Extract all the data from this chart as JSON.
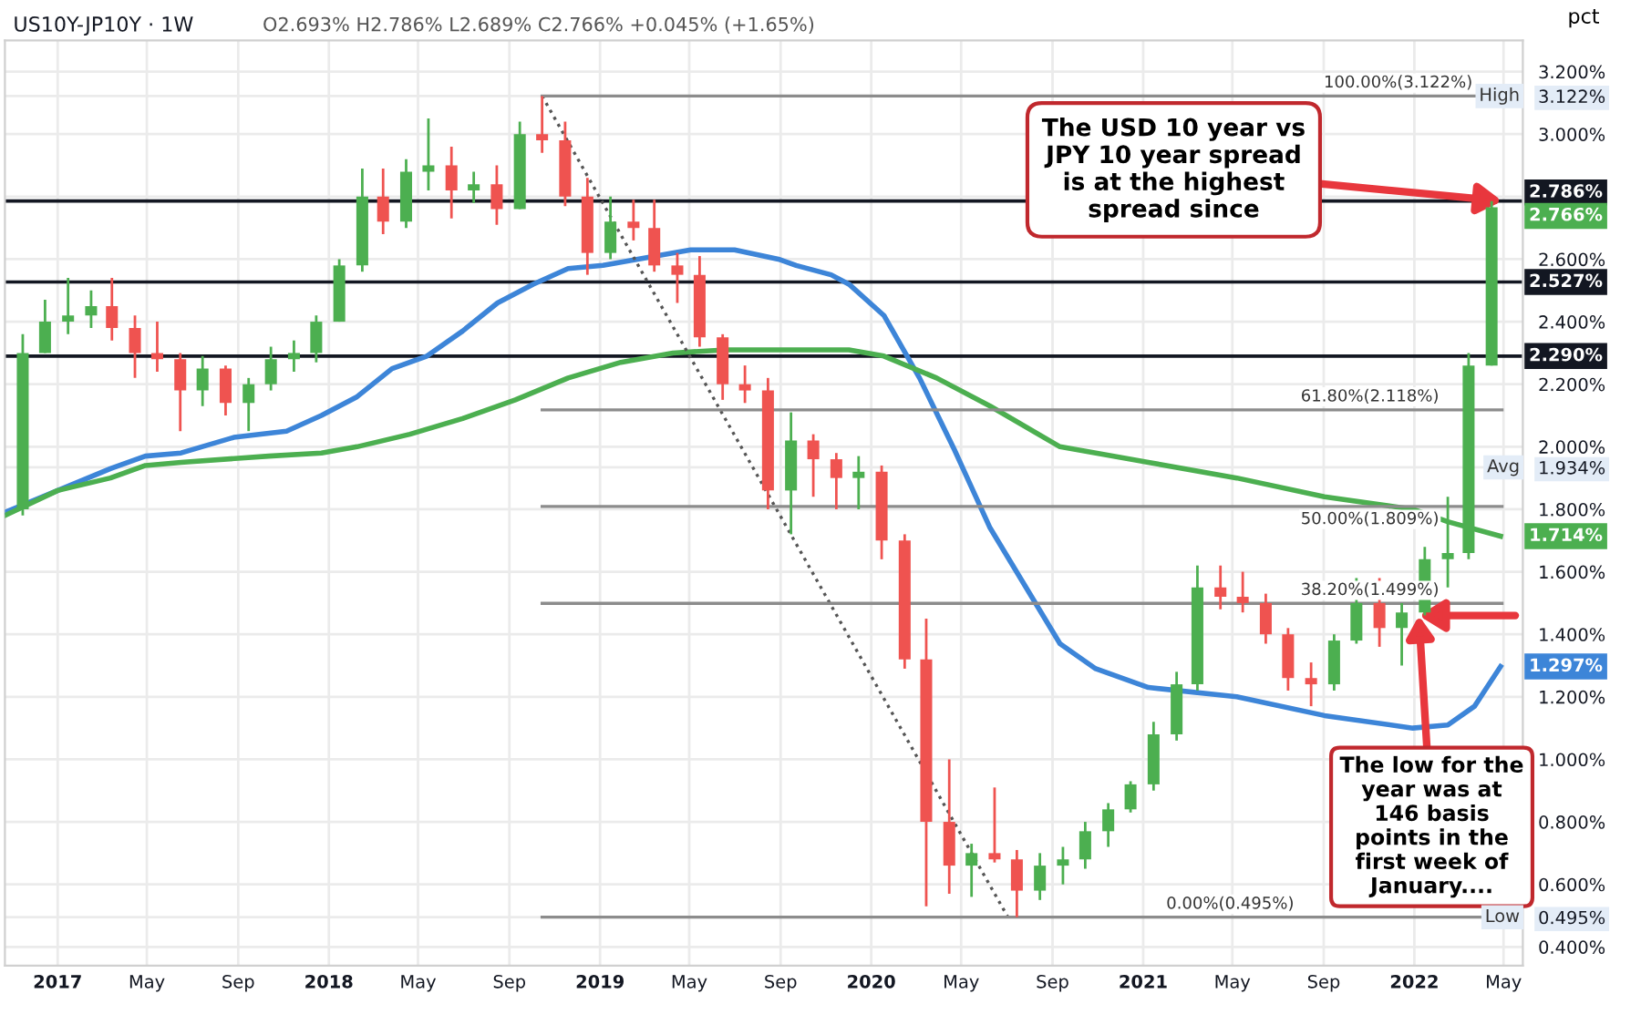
{
  "chart_data": {
    "type": "candlestick",
    "title": "US10Y-JP10Y · 1W",
    "subtitle": "O2.693% H2.786% L2.689% C2.766% +0.045% (+1.65%)",
    "ylabel": "pct",
    "series": [
      {
        "type": "candlestick",
        "x": [
          "2016-11-15",
          "2016-12-15",
          "2017-01-15",
          "2017-02-15",
          "2017-03-15",
          "2017-04-15",
          "2017-05-15",
          "2017-06-15",
          "2017-07-15",
          "2017-08-15",
          "2017-09-15",
          "2017-10-15",
          "2017-11-15",
          "2017-12-15",
          "2018-01-15",
          "2018-02-15",
          "2018-03-15",
          "2018-04-15",
          "2018-05-15",
          "2018-06-15",
          "2018-07-15",
          "2018-08-15",
          "2018-09-15",
          "2018-10-15",
          "2018-11-15",
          "2018-12-15",
          "2019-01-15",
          "2019-02-15",
          "2019-03-15",
          "2019-04-15",
          "2019-05-15",
          "2019-06-15",
          "2019-07-15",
          "2019-08-15",
          "2019-09-15",
          "2019-10-15",
          "2019-11-15",
          "2019-12-15",
          "2020-01-15",
          "2020-02-15",
          "2020-03-15",
          "2020-04-15",
          "2020-05-15",
          "2020-06-15",
          "2020-07-15",
          "2020-08-15",
          "2020-09-15",
          "2020-10-15",
          "2020-11-15",
          "2020-12-15",
          "2021-01-15",
          "2021-02-15",
          "2021-03-15",
          "2021-04-15",
          "2021-05-15",
          "2021-06-15",
          "2021-07-15",
          "2021-08-15",
          "2021-09-15",
          "2021-10-15",
          "2021-11-15",
          "2021-12-15",
          "2022-01-15",
          "2022-02-15",
          "2022-03-15",
          "2022-04-15"
        ],
        "ohlc": [
          [
            1.8,
            2.36,
            1.78,
            2.3
          ],
          [
            2.3,
            2.47,
            2.3,
            2.4
          ],
          [
            2.4,
            2.54,
            2.36,
            2.42
          ],
          [
            2.42,
            2.5,
            2.38,
            2.45
          ],
          [
            2.45,
            2.54,
            2.34,
            2.38
          ],
          [
            2.38,
            2.42,
            2.22,
            2.3
          ],
          [
            2.3,
            2.4,
            2.24,
            2.28
          ],
          [
            2.28,
            2.3,
            2.05,
            2.18
          ],
          [
            2.18,
            2.29,
            2.13,
            2.25
          ],
          [
            2.25,
            2.26,
            2.1,
            2.14
          ],
          [
            2.14,
            2.22,
            2.05,
            2.2
          ],
          [
            2.2,
            2.32,
            2.18,
            2.28
          ],
          [
            2.28,
            2.34,
            2.24,
            2.3
          ],
          [
            2.3,
            2.42,
            2.27,
            2.4
          ],
          [
            2.4,
            2.6,
            2.4,
            2.58
          ],
          [
            2.58,
            2.89,
            2.56,
            2.8
          ],
          [
            2.8,
            2.89,
            2.68,
            2.72
          ],
          [
            2.72,
            2.92,
            2.7,
            2.88
          ],
          [
            2.88,
            3.05,
            2.82,
            2.9
          ],
          [
            2.9,
            2.96,
            2.73,
            2.82
          ],
          [
            2.82,
            2.88,
            2.78,
            2.84
          ],
          [
            2.84,
            2.9,
            2.71,
            2.76
          ],
          [
            2.76,
            3.04,
            2.76,
            3.0
          ],
          [
            3.0,
            3.122,
            2.94,
            2.98
          ],
          [
            2.98,
            3.04,
            2.77,
            2.8
          ],
          [
            2.8,
            2.86,
            2.55,
            2.62
          ],
          [
            2.62,
            2.8,
            2.6,
            2.72
          ],
          [
            2.72,
            2.79,
            2.66,
            2.7
          ],
          [
            2.7,
            2.79,
            2.56,
            2.58
          ],
          [
            2.58,
            2.62,
            2.46,
            2.55
          ],
          [
            2.55,
            2.61,
            2.32,
            2.35
          ],
          [
            2.35,
            2.36,
            2.15,
            2.2
          ],
          [
            2.2,
            2.26,
            2.14,
            2.18
          ],
          [
            2.18,
            2.22,
            1.8,
            1.86
          ],
          [
            1.86,
            2.11,
            1.72,
            2.02
          ],
          [
            2.02,
            2.04,
            1.84,
            1.96
          ],
          [
            1.96,
            1.98,
            1.8,
            1.9
          ],
          [
            1.9,
            1.97,
            1.8,
            1.92
          ],
          [
            1.92,
            1.94,
            1.64,
            1.7
          ],
          [
            1.7,
            1.72,
            1.29,
            1.32
          ],
          [
            1.32,
            1.45,
            0.53,
            0.8
          ],
          [
            0.8,
            1.0,
            0.57,
            0.66
          ],
          [
            0.66,
            0.73,
            0.56,
            0.7
          ],
          [
            0.7,
            0.91,
            0.67,
            0.68
          ],
          [
            0.68,
            0.71,
            0.495,
            0.58
          ],
          [
            0.58,
            0.7,
            0.55,
            0.66
          ],
          [
            0.66,
            0.72,
            0.6,
            0.68
          ],
          [
            0.68,
            0.8,
            0.65,
            0.77
          ],
          [
            0.77,
            0.86,
            0.72,
            0.84
          ],
          [
            0.84,
            0.93,
            0.83,
            0.92
          ],
          [
            0.92,
            1.12,
            0.9,
            1.08
          ],
          [
            1.08,
            1.28,
            1.06,
            1.24
          ],
          [
            1.24,
            1.62,
            1.22,
            1.55
          ],
          [
            1.55,
            1.62,
            1.48,
            1.52
          ],
          [
            1.52,
            1.6,
            1.47,
            1.5
          ],
          [
            1.5,
            1.53,
            1.37,
            1.4
          ],
          [
            1.4,
            1.42,
            1.22,
            1.26
          ],
          [
            1.26,
            1.31,
            1.17,
            1.24
          ],
          [
            1.24,
            1.4,
            1.22,
            1.38
          ],
          [
            1.38,
            1.58,
            1.37,
            1.5
          ],
          [
            1.5,
            1.58,
            1.36,
            1.42
          ],
          [
            1.42,
            1.5,
            1.3,
            1.47
          ],
          [
            1.47,
            1.68,
            1.46,
            1.64
          ],
          [
            1.64,
            1.84,
            1.55,
            1.66
          ],
          [
            1.66,
            2.3,
            1.64,
            2.26
          ],
          [
            2.26,
            2.786,
            2.26,
            2.766
          ]
        ],
        "colors": [
          "#4caf50",
          "#4caf50",
          "#4caf50",
          "#4caf50",
          "#ef5350",
          "#ef5350",
          "#ef5350",
          "#ef5350",
          "#4caf50",
          "#ef5350",
          "#4caf50",
          "#4caf50",
          "#4caf50",
          "#4caf50",
          "#4caf50",
          "#4caf50",
          "#ef5350",
          "#4caf50",
          "#4caf50",
          "#ef5350",
          "#4caf50",
          "#ef5350",
          "#4caf50",
          "#ef5350",
          "#ef5350",
          "#ef5350",
          "#4caf50",
          "#ef5350",
          "#ef5350",
          "#ef5350",
          "#ef5350",
          "#ef5350",
          "#ef5350",
          "#ef5350",
          "#4caf50",
          "#ef5350",
          "#ef5350",
          "#4caf50",
          "#ef5350",
          "#ef5350",
          "#ef5350",
          "#ef5350",
          "#4caf50",
          "#ef5350",
          "#ef5350",
          "#4caf50",
          "#4caf50",
          "#4caf50",
          "#4caf50",
          "#4caf50",
          "#4caf50",
          "#4caf50",
          "#4caf50",
          "#ef5350",
          "#ef5350",
          "#ef5350",
          "#ef5350",
          "#ef5350",
          "#4caf50",
          "#4caf50",
          "#ef5350",
          "#4caf50",
          "#4caf50",
          "#4caf50",
          "#4caf50",
          "#4caf50"
        ]
      },
      {
        "type": "line",
        "color": "#3d85d8",
        "line_style": "solid",
        "x": [
          "2016-10-22",
          "2017-01-01",
          "2017-03-13",
          "2017-04-29",
          "2017-06-16",
          "2017-08-26",
          "2017-11-05",
          "2017-12-22",
          "2018-02-08",
          "2018-03-27",
          "2018-05-13",
          "2018-06-30",
          "2018-08-16",
          "2018-10-03",
          "2018-11-19",
          "2019-01-05",
          "2019-03-17",
          "2019-05-03",
          "2019-07-01",
          "2019-08-29",
          "2019-09-22",
          "2019-11-08",
          "2019-12-02",
          "2020-01-18",
          "2020-03-06",
          "2020-04-22",
          "2020-06-09",
          "2020-09-11",
          "2020-10-29",
          "2021-01-08",
          "2021-05-07",
          "2021-09-02",
          "2021-12-30",
          "2022-02-15",
          "2022-03-23",
          "2022-04-27"
        ],
        "values": [
          1.79,
          1.86,
          1.93,
          1.97,
          1.98,
          2.03,
          2.05,
          2.1,
          2.16,
          2.25,
          2.29,
          2.37,
          2.46,
          2.52,
          2.57,
          2.58,
          2.61,
          2.63,
          2.63,
          2.6,
          2.58,
          2.55,
          2.52,
          2.42,
          2.22,
          1.99,
          1.74,
          1.37,
          1.29,
          1.23,
          1.2,
          1.14,
          1.1,
          1.11,
          1.17,
          1.297
        ]
      },
      {
        "type": "line",
        "color": "#4caf50",
        "line_style": "solid",
        "x": [
          "2016-10-22",
          "2017-01-01",
          "2017-03-13",
          "2017-04-29",
          "2017-06-16",
          "2017-10-12",
          "2017-12-22",
          "2018-02-08",
          "2018-04-20",
          "2018-06-30",
          "2018-09-09",
          "2018-11-19",
          "2019-01-29",
          "2019-04-09",
          "2019-06-19",
          "2019-09-22",
          "2019-12-02",
          "2020-01-18",
          "2020-03-29",
          "2020-06-09",
          "2020-09-11",
          "2021-01-08",
          "2021-05-07",
          "2021-09-02",
          "2021-12-30",
          "2022-02-15",
          "2022-04-27"
        ],
        "values": [
          1.78,
          1.86,
          1.9,
          1.94,
          1.95,
          1.97,
          1.98,
          2.0,
          2.04,
          2.09,
          2.15,
          2.22,
          2.27,
          2.3,
          2.31,
          2.31,
          2.31,
          2.29,
          2.22,
          2.13,
          2.0,
          1.95,
          1.9,
          1.84,
          1.8,
          1.76,
          1.714
        ]
      },
      {
        "type": "line",
        "color": "#555555",
        "line_style": "dotted",
        "x": [
          "2018-10-15",
          "2020-07-03"
        ],
        "values": [
          3.122,
          0.495
        ]
      },
      {
        "type": "line",
        "color": "#8c8c8c",
        "line_style": "solid",
        "x": [
          "2018-10-15",
          "2022-04-29"
        ],
        "values": [
          3.122,
          3.122
        ]
      },
      {
        "type": "line",
        "color": "#8c8c8c",
        "line_style": "solid",
        "x": [
          "2018-10-15",
          "2022-04-29"
        ],
        "values": [
          2.118,
          2.118
        ]
      },
      {
        "type": "line",
        "color": "#8c8c8c",
        "line_style": "solid",
        "x": [
          "2018-10-15",
          "2022-04-29"
        ],
        "values": [
          1.809,
          1.809
        ]
      },
      {
        "type": "line",
        "color": "#8c8c8c",
        "line_style": "solid",
        "x": [
          "2018-10-15",
          "2022-04-29"
        ],
        "values": [
          1.499,
          1.499
        ]
      },
      {
        "type": "line",
        "color": "#8c8c8c",
        "line_style": "solid",
        "x": [
          "2018-10-15",
          "2022-04-29"
        ],
        "values": [
          0.495,
          0.495
        ]
      }
    ],
    "ref_lines": [
      {
        "axis": "y",
        "value": 2.786,
        "label": "2.786%",
        "color": "#131722"
      },
      {
        "axis": "y",
        "value": 2.527,
        "label": "2.527%",
        "color": "#131722"
      },
      {
        "axis": "y",
        "value": 2.29,
        "label": "2.290%",
        "color": "#131722"
      }
    ],
    "annotations": [
      {
        "text": "100.00%(3.122%)",
        "x": "2021-09-01",
        "y": 3.122
      },
      {
        "text": "61.80%(2.118%)",
        "x": "2021-08-01",
        "y": 2.118
      },
      {
        "text": "50.00%(1.809%)",
        "x": "2021-08-01",
        "y": 1.809
      },
      {
        "text": "38.20%(1.499%)",
        "x": "2021-08-01",
        "y": 1.499
      },
      {
        "text": "0.00%(0.495%)",
        "x": "2021-02-01",
        "y": 0.495
      },
      "High",
      "Avg",
      "Low",
      {
        "text": "2.766%",
        "x": "2022-04-29",
        "y": 2.766
      },
      {
        "text": "1.714%",
        "x": "2022-04-27",
        "y": 1.714
      },
      {
        "text": "1.297%",
        "x": "2022-04-27",
        "y": 1.297
      },
      {
        "text": "The USD 10 year vs\nJPY 10 year spread\nis at the highest\nspread since",
        "x": "2022-04-29",
        "y": 2.786
      },
      {
        "text": "The low for the\nyear was at\n146 basis\npoints in the\nfirst week of\nJanuary....",
        "x": "2022-01-07",
        "y": 1.46
      }
    ],
    "xlim": [
      "2016-10-22",
      "2022-05-27"
    ],
    "ylim": [
      0.34,
      3.3
    ],
    "xticks": [
      {
        "value": "2017-01-01",
        "label": "2017"
      },
      {
        "value": "2017-05-01",
        "label": "May"
      },
      {
        "value": "2017-09-01",
        "label": "Sep"
      },
      {
        "value": "2018-01-01",
        "label": "2018"
      },
      {
        "value": "2018-05-01",
        "label": "May"
      },
      {
        "value": "2018-09-01",
        "label": "Sep"
      },
      {
        "value": "2019-01-01",
        "label": "2019"
      },
      {
        "value": "2019-05-01",
        "label": "May"
      },
      {
        "value": "2019-09-01",
        "label": "Sep"
      },
      {
        "value": "2020-01-01",
        "label": "2020"
      },
      {
        "value": "2020-05-01",
        "label": "May"
      },
      {
        "value": "2020-09-01",
        "label": "Sep"
      },
      {
        "value": "2021-01-01",
        "label": "2021"
      },
      {
        "value": "2021-05-01",
        "label": "May"
      },
      {
        "value": "2021-09-01",
        "label": "Sep"
      },
      {
        "value": "2022-01-01",
        "label": "2022"
      },
      {
        "value": "2022-05-01",
        "label": "May"
      }
    ],
    "yticks": [
      {
        "value": 0.4,
        "label": "0.400%"
      },
      {
        "value": 0.6,
        "label": "0.600%"
      },
      {
        "value": 0.8,
        "label": "0.800%"
      },
      {
        "value": 1.0,
        "label": "1.000%"
      },
      {
        "value": 1.2,
        "label": "1.200%"
      },
      {
        "value": 1.4,
        "label": "1.400%"
      },
      {
        "value": 1.6,
        "label": "1.600%"
      },
      {
        "value": 1.8,
        "label": "1.800%"
      },
      {
        "value": 2.0,
        "label": "2.000%"
      },
      {
        "value": 2.2,
        "label": "2.200%"
      },
      {
        "value": 2.4,
        "label": "2.400%"
      },
      {
        "value": 2.6,
        "label": "2.600%"
      },
      {
        "value": 2.8,
        "label": null
      },
      {
        "value": 3.0,
        "label": "3.000%"
      },
      {
        "value": 3.2,
        "label": "3.200%"
      },
      {
        "value": 3.122,
        "label": "3.122%"
      },
      {
        "value": 1.934,
        "label": "1.934%"
      },
      {
        "value": 0.495,
        "label": "0.495%"
      }
    ],
    "grid": true
  }
}
